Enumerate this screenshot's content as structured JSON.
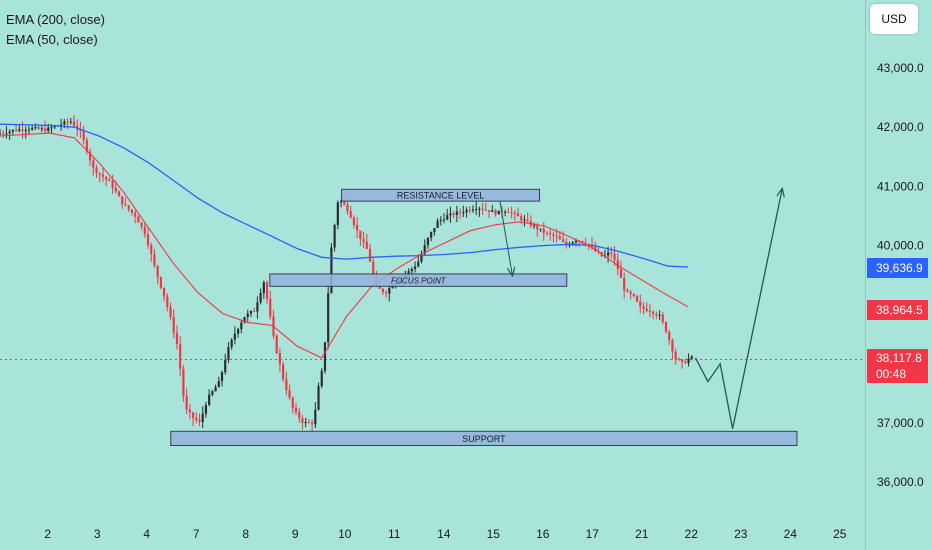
{
  "legend": {
    "ema200": "EMA (200, close)",
    "ema50": "EMA (50, close)"
  },
  "currency_button": "USD",
  "price_scale": {
    "ticks": [
      "43,000.0",
      "42,000.0",
      "41,000.0",
      "40,000.0",
      "37,000.0",
      "36,000.0"
    ],
    "tick_values": [
      43000,
      42000,
      41000,
      40000,
      37000,
      36000
    ],
    "ema200_tag": "39,636.9",
    "ema200_value": 39636.9,
    "ema50_tag": "38,964.5",
    "ema50_value": 38964.5,
    "last_price_tag": "38,117.8",
    "last_price_value": 38117.8,
    "countdown": "00:48"
  },
  "colors": {
    "background": "#a9e4da",
    "bull_candle": "#2d2d2d",
    "bear_candle": "#f23645",
    "ema200": "#2962ff",
    "ema50": "#f23645",
    "zone_fill": "#93b4dc",
    "zone_stroke": "#3a3f57",
    "projection": "#1f5c4a"
  },
  "chart_data": {
    "type": "candlestick",
    "x_ticks": [
      "2",
      "3",
      "4",
      "7",
      "8",
      "9",
      "10",
      "11",
      "14",
      "15",
      "16",
      "17",
      "21",
      "22",
      "23",
      "24",
      "25"
    ],
    "x_tick_index": [
      1,
      3,
      5,
      7,
      9,
      11,
      13,
      15,
      17,
      19,
      21,
      23,
      25,
      27,
      29,
      31,
      33
    ],
    "ylim": [
      35800,
      43400
    ],
    "price_path": [
      [
        0,
        41880
      ],
      [
        0.7,
        41950
      ],
      [
        1.3,
        41980
      ],
      [
        2.0,
        41960
      ],
      [
        2.6,
        42050
      ],
      [
        3.0,
        42100
      ],
      [
        3.4,
        41900
      ],
      [
        3.9,
        41300
      ],
      [
        4.6,
        41050
      ],
      [
        5.1,
        40700
      ],
      [
        5.6,
        40500
      ],
      [
        6.0,
        40200
      ],
      [
        6.4,
        39600
      ],
      [
        6.8,
        39100
      ],
      [
        7.0,
        38800
      ],
      [
        7.3,
        38300
      ],
      [
        7.6,
        37250
      ],
      [
        7.9,
        37100
      ],
      [
        8.2,
        37000
      ],
      [
        8.5,
        37400
      ],
      [
        9.0,
        37700
      ],
      [
        9.3,
        38200
      ],
      [
        9.6,
        38500
      ],
      [
        10.0,
        38800
      ],
      [
        10.4,
        38900
      ],
      [
        10.8,
        39400
      ],
      [
        11.2,
        38400
      ],
      [
        11.6,
        37700
      ],
      [
        12.0,
        37200
      ],
      [
        12.4,
        37000
      ],
      [
        12.8,
        37000
      ],
      [
        13.0,
        37600
      ],
      [
        13.2,
        38000
      ],
      [
        13.5,
        39900
      ],
      [
        13.8,
        40800
      ],
      [
        14.2,
        40600
      ],
      [
        14.6,
        40200
      ],
      [
        15.0,
        39900
      ],
      [
        15.3,
        39300
      ],
      [
        15.7,
        39200
      ],
      [
        16.1,
        39400
      ],
      [
        16.5,
        39500
      ],
      [
        17.0,
        39700
      ],
      [
        17.4,
        40100
      ],
      [
        17.8,
        40400
      ],
      [
        18.2,
        40500
      ],
      [
        18.6,
        40550
      ],
      [
        19.0,
        40600
      ],
      [
        19.4,
        40650
      ],
      [
        19.8,
        40600
      ],
      [
        20.2,
        40550
      ],
      [
        20.6,
        40600
      ],
      [
        21.0,
        40500
      ],
      [
        21.4,
        40400
      ],
      [
        21.8,
        40300
      ],
      [
        22.2,
        40200
      ],
      [
        22.6,
        40150
      ],
      [
        23.0,
        40000
      ],
      [
        23.4,
        40100
      ],
      [
        23.8,
        40050
      ],
      [
        24.2,
        39900
      ],
      [
        24.5,
        39800
      ],
      [
        24.8,
        39900
      ],
      [
        25.1,
        39600
      ],
      [
        25.4,
        39200
      ],
      [
        25.7,
        39150
      ],
      [
        26.0,
        38950
      ],
      [
        26.4,
        38900
      ],
      [
        26.8,
        38800
      ],
      [
        27.1,
        38500
      ],
      [
        27.4,
        38100
      ],
      [
        27.7,
        38000
      ],
      [
        28.0,
        38100
      ]
    ],
    "ema200": [
      [
        0,
        42050
      ],
      [
        2,
        42030
      ],
      [
        3,
        42000
      ],
      [
        4,
        41850
      ],
      [
        5,
        41650
      ],
      [
        6,
        41400
      ],
      [
        7,
        41100
      ],
      [
        8,
        40800
      ],
      [
        9,
        40550
      ],
      [
        10,
        40350
      ],
      [
        11,
        40150
      ],
      [
        12,
        39950
      ],
      [
        13,
        39800
      ],
      [
        14,
        39770
      ],
      [
        15,
        39800
      ],
      [
        16,
        39820
      ],
      [
        17,
        39830
      ],
      [
        18,
        39850
      ],
      [
        19,
        39880
      ],
      [
        20,
        39930
      ],
      [
        21,
        39970
      ],
      [
        22,
        40000
      ],
      [
        23,
        40020
      ],
      [
        24,
        40000
      ],
      [
        25,
        39900
      ],
      [
        26,
        39780
      ],
      [
        27,
        39650
      ],
      [
        27.8,
        39637
      ]
    ],
    "ema50": [
      [
        0,
        41850
      ],
      [
        2,
        41900
      ],
      [
        3,
        41820
      ],
      [
        4,
        41400
      ],
      [
        5,
        40900
      ],
      [
        6,
        40300
      ],
      [
        7,
        39700
      ],
      [
        8,
        39200
      ],
      [
        9,
        38850
      ],
      [
        10,
        38700
      ],
      [
        11,
        38650
      ],
      [
        12,
        38300
      ],
      [
        13,
        38100
      ],
      [
        14,
        38800
      ],
      [
        15,
        39300
      ],
      [
        16,
        39600
      ],
      [
        17,
        39850
      ],
      [
        18,
        40050
      ],
      [
        19,
        40250
      ],
      [
        20,
        40350
      ],
      [
        21,
        40400
      ],
      [
        22,
        40330
      ],
      [
        23,
        40150
      ],
      [
        24,
        39950
      ],
      [
        25,
        39650
      ],
      [
        26,
        39400
      ],
      [
        27,
        39150
      ],
      [
        27.8,
        38964
      ]
    ],
    "zones": [
      {
        "name": "resistance",
        "label": "RESISTANCE LEVEL",
        "from_x": 13.8,
        "to_x": 21.8,
        "y_low": 40750,
        "y_high": 40950
      },
      {
        "name": "focus",
        "label": "FOCUS POINT",
        "from_x": 10.9,
        "to_x": 22.9,
        "y_low": 39310,
        "y_high": 39520
      },
      {
        "name": "support",
        "label": "SUPPORT",
        "from_x": 6.9,
        "to_x": 32.2,
        "y_low": 36620,
        "y_high": 36860
      }
    ],
    "projection": [
      [
        28.1,
        38100
      ],
      [
        28.6,
        37700
      ],
      [
        29.1,
        38000
      ],
      [
        29.6,
        36900
      ],
      [
        31.6,
        40950
      ]
    ],
    "focus_arrow": [
      [
        20.2,
        40750
      ],
      [
        20.7,
        39500
      ]
    ]
  }
}
